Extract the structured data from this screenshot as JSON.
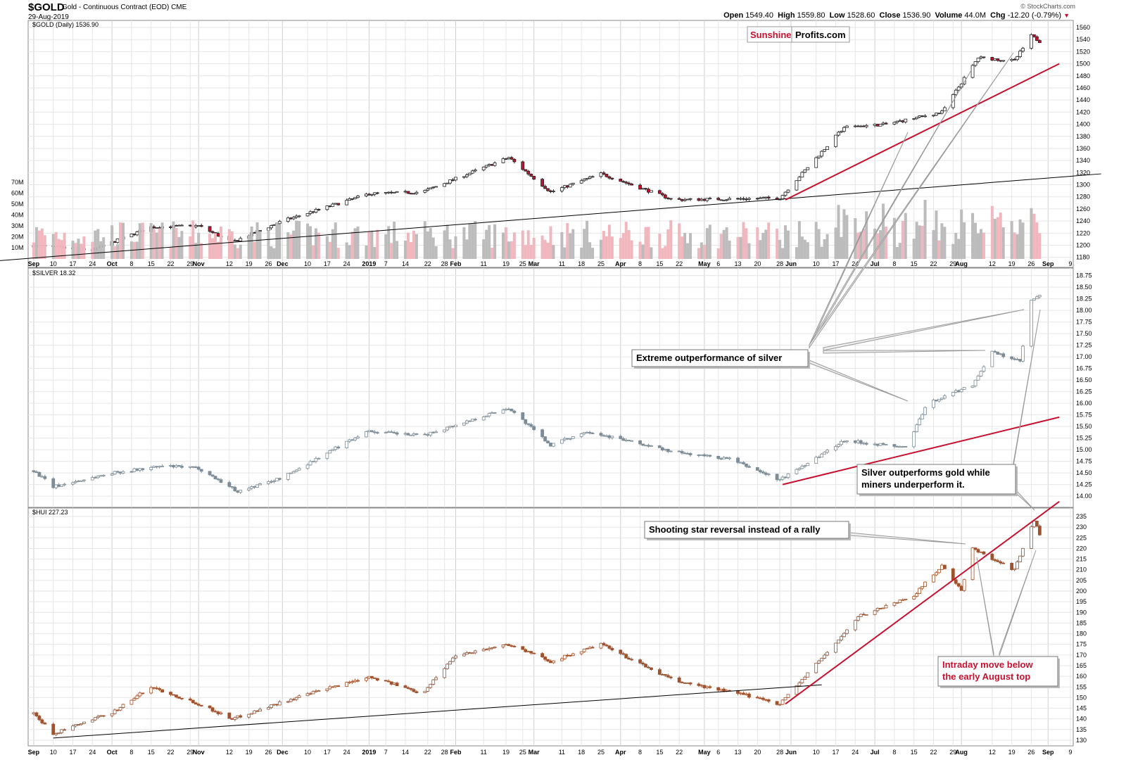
{
  "header": {
    "symbol": "$GOLD",
    "name": "Gold - Continuous Contract (EOD)",
    "exchange": "CME",
    "date": "29-Aug-2019",
    "brand": "© StockCharts.com",
    "quote": {
      "open_label": "Open",
      "open": "1549.40",
      "high_label": "High",
      "high": "1559.80",
      "low_label": "Low",
      "low": "1528.60",
      "close_label": "Close",
      "close": "1536.90",
      "volume_label": "Volume",
      "volume": "44.0M",
      "chg_label": "Chg",
      "chg": "-12.20 (-0.79%)"
    }
  },
  "watermark": {
    "left": "Sunshine",
    "right": "Profits.com"
  },
  "colors": {
    "up": "#ffffff",
    "down": "#c8102e",
    "silver": "#7d8c96",
    "hui": "#a0522d",
    "trend": "#c8102e",
    "grid": "#dddddd"
  },
  "chart_data": [
    {
      "type": "candlestick",
      "title": "$GOLD (Daily) 1536.90",
      "y_ticks": [
        1180,
        1200,
        1220,
        1240,
        1260,
        1280,
        1300,
        1320,
        1340,
        1360,
        1380,
        1400,
        1420,
        1440,
        1460,
        1480,
        1500,
        1520,
        1540,
        1560
      ],
      "ylim": [
        1175,
        1567
      ],
      "volume_ticks": [
        "10M",
        "20M",
        "30M",
        "40M",
        "50M",
        "60M",
        "70M"
      ],
      "x_ticks": [
        "Sep",
        "10",
        "17",
        "24",
        "Oct",
        "8",
        "15",
        "22",
        "29",
        "Nov",
        "12",
        "19",
        "26",
        "Dec",
        "10",
        "17",
        "24",
        "2019",
        "7",
        "14",
        "22",
        "28",
        "Feb",
        "11",
        "19",
        "25",
        "Mar",
        "11",
        "18",
        "25",
        "Apr",
        "8",
        "15",
        "22",
        "May",
        "6",
        "13",
        "20",
        "28",
        "Jun",
        "10",
        "17",
        "24",
        "Jul",
        "8",
        "15",
        "22",
        "29",
        "Aug",
        "12",
        "19",
        "26",
        "Sep",
        "9"
      ],
      "anchors": [
        [
          "2018-09-01",
          1200
        ],
        [
          "2018-09-24",
          1192
        ],
        [
          "2018-10-15",
          1230
        ],
        [
          "2018-11-01",
          1232
        ],
        [
          "2018-11-13",
          1205
        ],
        [
          "2018-12-01",
          1240
        ],
        [
          "2019-01-01",
          1285
        ],
        [
          "2019-01-20",
          1288
        ],
        [
          "2019-02-20",
          1345
        ],
        [
          "2019-03-07",
          1288
        ],
        [
          "2019-03-25",
          1318
        ],
        [
          "2019-04-20",
          1275
        ],
        [
          "2019-05-28",
          1278
        ],
        [
          "2019-06-20",
          1395
        ],
        [
          "2019-07-05",
          1400
        ],
        [
          "2019-07-25",
          1420
        ],
        [
          "2019-08-07",
          1510
        ],
        [
          "2019-08-20",
          1505
        ],
        [
          "2019-08-26",
          1546
        ],
        [
          "2019-08-29",
          1537
        ]
      ],
      "trendlines": [
        {
          "color": "black",
          "points": [
            [
              "2018-08-15",
              1172
            ],
            [
              "2019-09-20",
              1318
            ]
          ]
        },
        {
          "color": "red",
          "points": [
            [
              "2019-05-30",
              1275
            ],
            [
              "2019-09-05",
              1500
            ]
          ]
        }
      ]
    },
    {
      "type": "candlestick",
      "title": "$SILVER 18.32",
      "y_ticks": [
        14.0,
        14.25,
        14.5,
        14.75,
        15.0,
        15.25,
        15.5,
        15.75,
        16.0,
        16.25,
        16.5,
        16.75,
        17.0,
        17.25,
        17.5,
        17.75,
        18.0,
        18.25,
        18.5,
        18.75
      ],
      "ylim": [
        13.85,
        18.85
      ],
      "anchors": [
        [
          "2018-09-01",
          14.65
        ],
        [
          "2018-09-10",
          14.2
        ],
        [
          "2018-10-01",
          14.5
        ],
        [
          "2018-10-20",
          14.65
        ],
        [
          "2018-11-01",
          14.6
        ],
        [
          "2018-11-15",
          14.1
        ],
        [
          "2018-12-01",
          14.4
        ],
        [
          "2018-12-31",
          15.4
        ],
        [
          "2019-01-20",
          15.3
        ],
        [
          "2019-02-20",
          15.9
        ],
        [
          "2019-03-07",
          15.1
        ],
        [
          "2019-03-20",
          15.4
        ],
        [
          "2019-04-20",
          14.95
        ],
        [
          "2019-05-10",
          14.8
        ],
        [
          "2019-05-28",
          14.35
        ],
        [
          "2019-06-20",
          15.2
        ],
        [
          "2019-07-12",
          15.05
        ],
        [
          "2019-07-20",
          16.0
        ],
        [
          "2019-08-05",
          16.4
        ],
        [
          "2019-08-12",
          17.1
        ],
        [
          "2019-08-22",
          16.9
        ],
        [
          "2019-08-26",
          18.2
        ],
        [
          "2019-08-29",
          18.32
        ]
      ],
      "trendlines": [
        {
          "color": "red",
          "points": [
            [
              "2019-05-29",
              14.25
            ],
            [
              "2019-09-05",
              15.7
            ]
          ]
        }
      ]
    },
    {
      "type": "candlestick",
      "title": "$HUI 227.23",
      "y_ticks": [
        130,
        135,
        140,
        145,
        150,
        155,
        160,
        165,
        170,
        175,
        180,
        185,
        190,
        195,
        200,
        205,
        210,
        215,
        220,
        225,
        230,
        235
      ],
      "ylim": [
        128,
        237
      ],
      "anchors": [
        [
          "2018-09-01",
          145
        ],
        [
          "2018-09-10",
          133
        ],
        [
          "2018-10-01",
          143
        ],
        [
          "2018-10-15",
          155
        ],
        [
          "2018-11-01",
          147
        ],
        [
          "2018-11-13",
          140
        ],
        [
          "2018-12-01",
          148
        ],
        [
          "2019-01-01",
          160
        ],
        [
          "2019-01-20",
          152
        ],
        [
          "2019-02-01",
          170
        ],
        [
          "2019-02-20",
          175
        ],
        [
          "2019-03-07",
          167
        ],
        [
          "2019-03-25",
          175
        ],
        [
          "2019-04-20",
          158
        ],
        [
          "2019-05-20",
          150
        ],
        [
          "2019-05-28",
          147
        ],
        [
          "2019-06-20",
          180
        ],
        [
          "2019-06-25",
          188
        ],
        [
          "2019-07-15",
          198
        ],
        [
          "2019-07-25",
          212
        ],
        [
          "2019-08-01",
          200
        ],
        [
          "2019-08-05",
          220
        ],
        [
          "2019-08-20",
          210
        ],
        [
          "2019-08-27",
          233
        ],
        [
          "2019-08-29",
          227
        ]
      ],
      "trendlines": [
        {
          "color": "black",
          "points": [
            [
              "2018-09-10",
              131
            ],
            [
              "2019-06-12",
              156
            ]
          ]
        },
        {
          "color": "red",
          "points": [
            [
              "2019-05-30",
              147
            ],
            [
              "2019-09-05",
              242
            ]
          ]
        }
      ]
    }
  ],
  "annotations": {
    "silver_outperf": "Extreme outperformance of silver",
    "silver_gold_line1": "Silver outperforms gold while",
    "silver_gold_line2": "miners underperform it.",
    "shooting_star": "Shooting star reversal instead of a rally",
    "intraday_line1": "Intraday move below",
    "intraday_line2": "the early August top"
  }
}
